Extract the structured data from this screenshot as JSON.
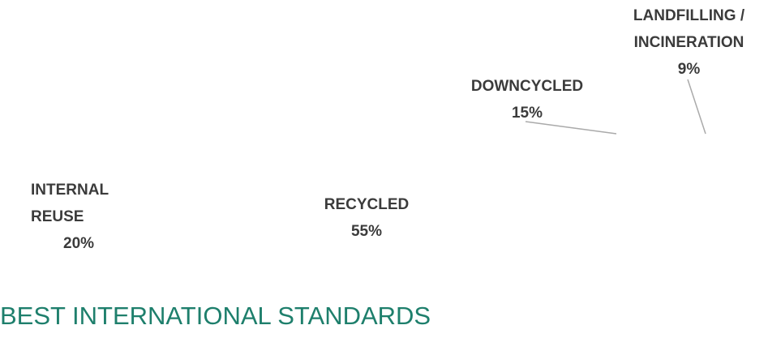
{
  "chart_data": {
    "type": "bar",
    "stacked": true,
    "orientation": "horizontal",
    "title": "BEST INTERNATIONAL STANDARDS",
    "categories": [
      "INTERNAL REUSE",
      "RECYCLED",
      "DOWNCYCLED",
      "LANDFILLING / INCINERATION"
    ],
    "values": [
      20,
      55,
      15,
      9
    ],
    "value_labels": [
      "20%",
      "55%",
      "15%",
      "9%"
    ],
    "colors": [
      "#1e946c",
      "#d0ecd6",
      "#b38b30",
      "#dcbb77"
    ]
  }
}
